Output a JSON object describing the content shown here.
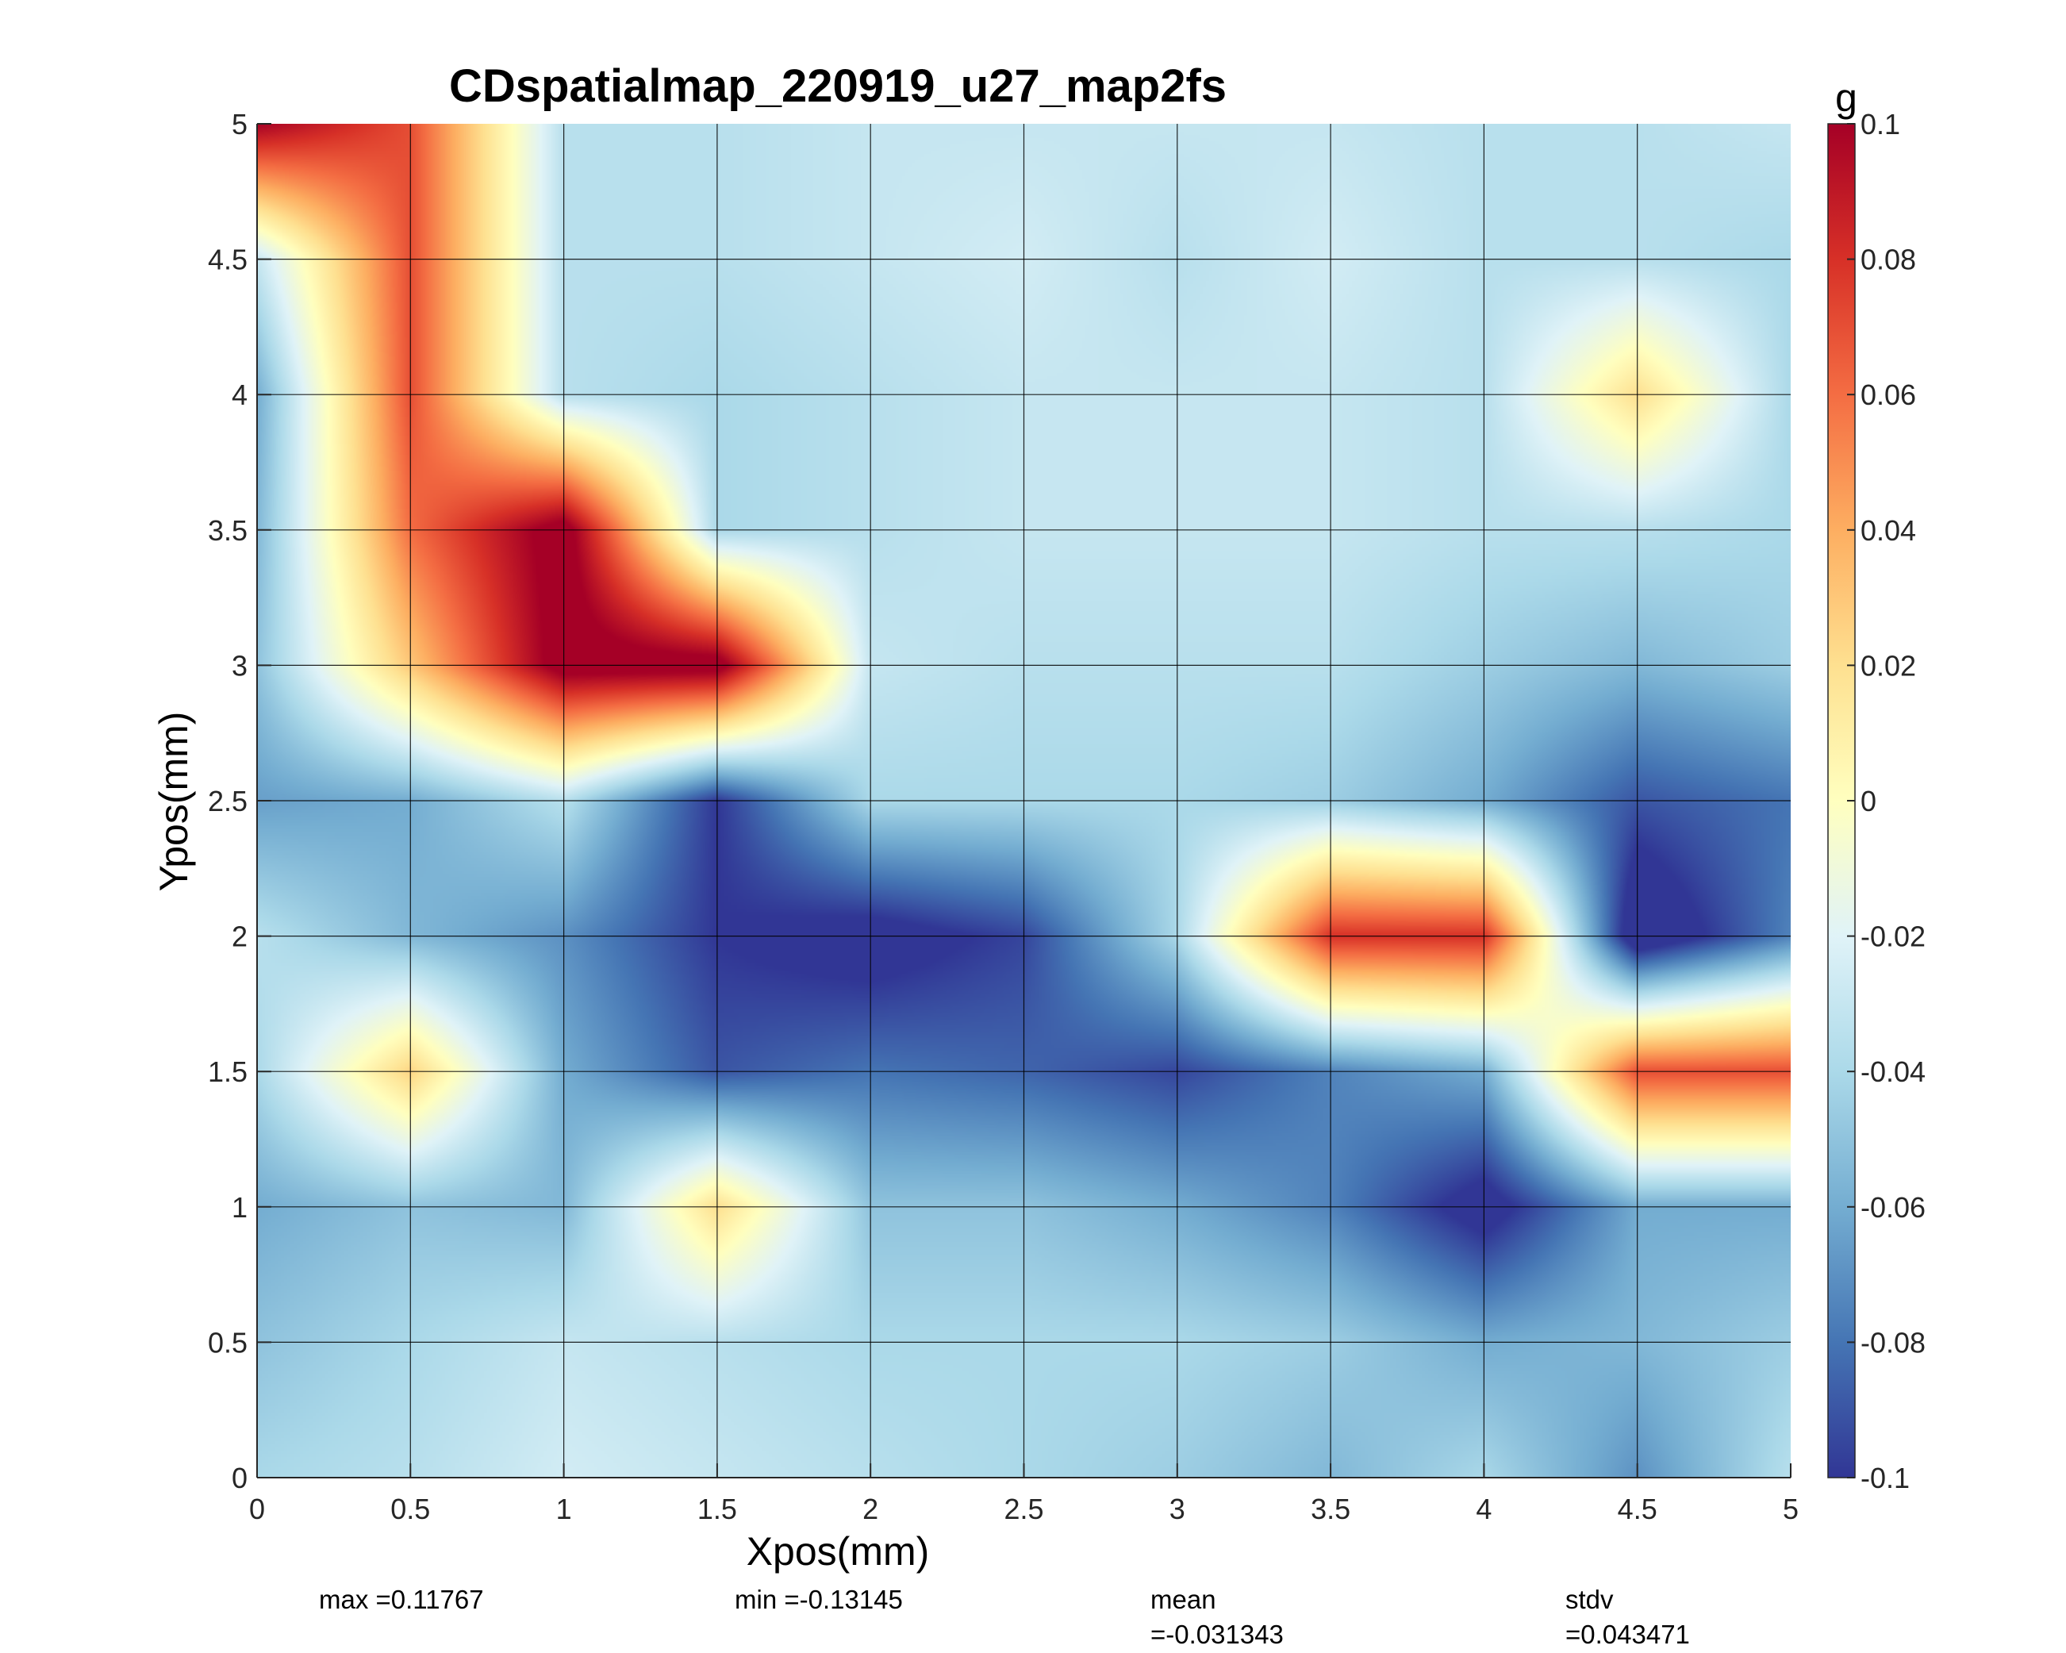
{
  "chart_data": {
    "type": "heatmap",
    "title": "CDspatialmap_220919_u27_map2fs",
    "xlabel": "Xpos(mm)",
    "ylabel": "Ypos(mm)",
    "xlim": [
      0,
      5
    ],
    "ylim": [
      0,
      5
    ],
    "x": [
      0,
      0.5,
      1,
      1.5,
      2,
      2.5,
      3,
      3.5,
      4,
      4.5,
      5
    ],
    "y": [
      0,
      0.5,
      1,
      1.5,
      2,
      2.5,
      3,
      3.5,
      4,
      4.5,
      5
    ],
    "x_ticks": [
      "0",
      "0.5",
      "1",
      "1.5",
      "2",
      "2.5",
      "3",
      "3.5",
      "4",
      "4.5",
      "5"
    ],
    "y_ticks": [
      "0",
      "0.5",
      "1",
      "1.5",
      "2",
      "2.5",
      "3",
      "3.5",
      "4",
      "4.5",
      "5"
    ],
    "z": [
      [
        -0.04,
        -0.035,
        -0.025,
        -0.03,
        -0.035,
        -0.04,
        -0.045,
        -0.055,
        -0.04,
        -0.07,
        -0.035
      ],
      [
        -0.05,
        -0.04,
        -0.03,
        -0.035,
        -0.04,
        -0.04,
        -0.04,
        -0.045,
        -0.06,
        -0.055,
        -0.045
      ],
      [
        -0.06,
        -0.05,
        -0.055,
        0.02,
        -0.05,
        -0.05,
        -0.06,
        -0.075,
        -0.11,
        -0.06,
        -0.06
      ],
      [
        -0.04,
        0.025,
        -0.06,
        -0.09,
        -0.08,
        -0.085,
        -0.095,
        -0.075,
        -0.06,
        0.07,
        0.07
      ],
      [
        -0.035,
        -0.055,
        -0.07,
        -0.1,
        -0.11,
        -0.095,
        -0.04,
        0.08,
        0.08,
        -0.12,
        -0.075
      ],
      [
        -0.065,
        -0.06,
        -0.035,
        -0.1,
        -0.04,
        -0.04,
        -0.04,
        -0.045,
        -0.06,
        -0.09,
        -0.08
      ],
      [
        -0.05,
        0.03,
        0.11,
        0.11,
        -0.03,
        -0.035,
        -0.035,
        -0.035,
        -0.045,
        -0.055,
        -0.045
      ],
      [
        -0.055,
        0.06,
        0.11,
        -0.04,
        -0.035,
        -0.03,
        -0.03,
        -0.03,
        -0.035,
        -0.035,
        -0.04
      ],
      [
        -0.06,
        0.07,
        -0.035,
        -0.04,
        -0.035,
        -0.03,
        -0.03,
        -0.03,
        -0.035,
        0.02,
        -0.04
      ],
      [
        -0.03,
        0.07,
        -0.035,
        -0.035,
        -0.03,
        -0.025,
        -0.035,
        -0.025,
        -0.035,
        -0.035,
        -0.04
      ],
      [
        0.1,
        0.07,
        -0.035,
        -0.035,
        -0.03,
        -0.03,
        -0.03,
        -0.03,
        -0.035,
        -0.035,
        -0.03
      ]
    ],
    "colorbar": {
      "label": "g",
      "clim": [
        -0.1,
        0.1
      ],
      "ticks": [
        "-0.1",
        "-0.08",
        "-0.06",
        "-0.04",
        "-0.02",
        "0",
        "0.02",
        "0.04",
        "0.06",
        "0.08",
        "0.1"
      ],
      "colormap": [
        "#313695",
        "#4575b4",
        "#74add1",
        "#abd9e9",
        "#e0f3f8",
        "#ffffbf",
        "#fee090",
        "#fdae61",
        "#f46d43",
        "#d73027",
        "#a50026"
      ]
    },
    "grid": true,
    "stats": {
      "max": "max =0.11767",
      "min": "min =-0.13145",
      "mean_label": "mean",
      "mean_value": "=-0.031343",
      "stdv_label": "stdv",
      "stdv_value": "=0.043471"
    }
  }
}
